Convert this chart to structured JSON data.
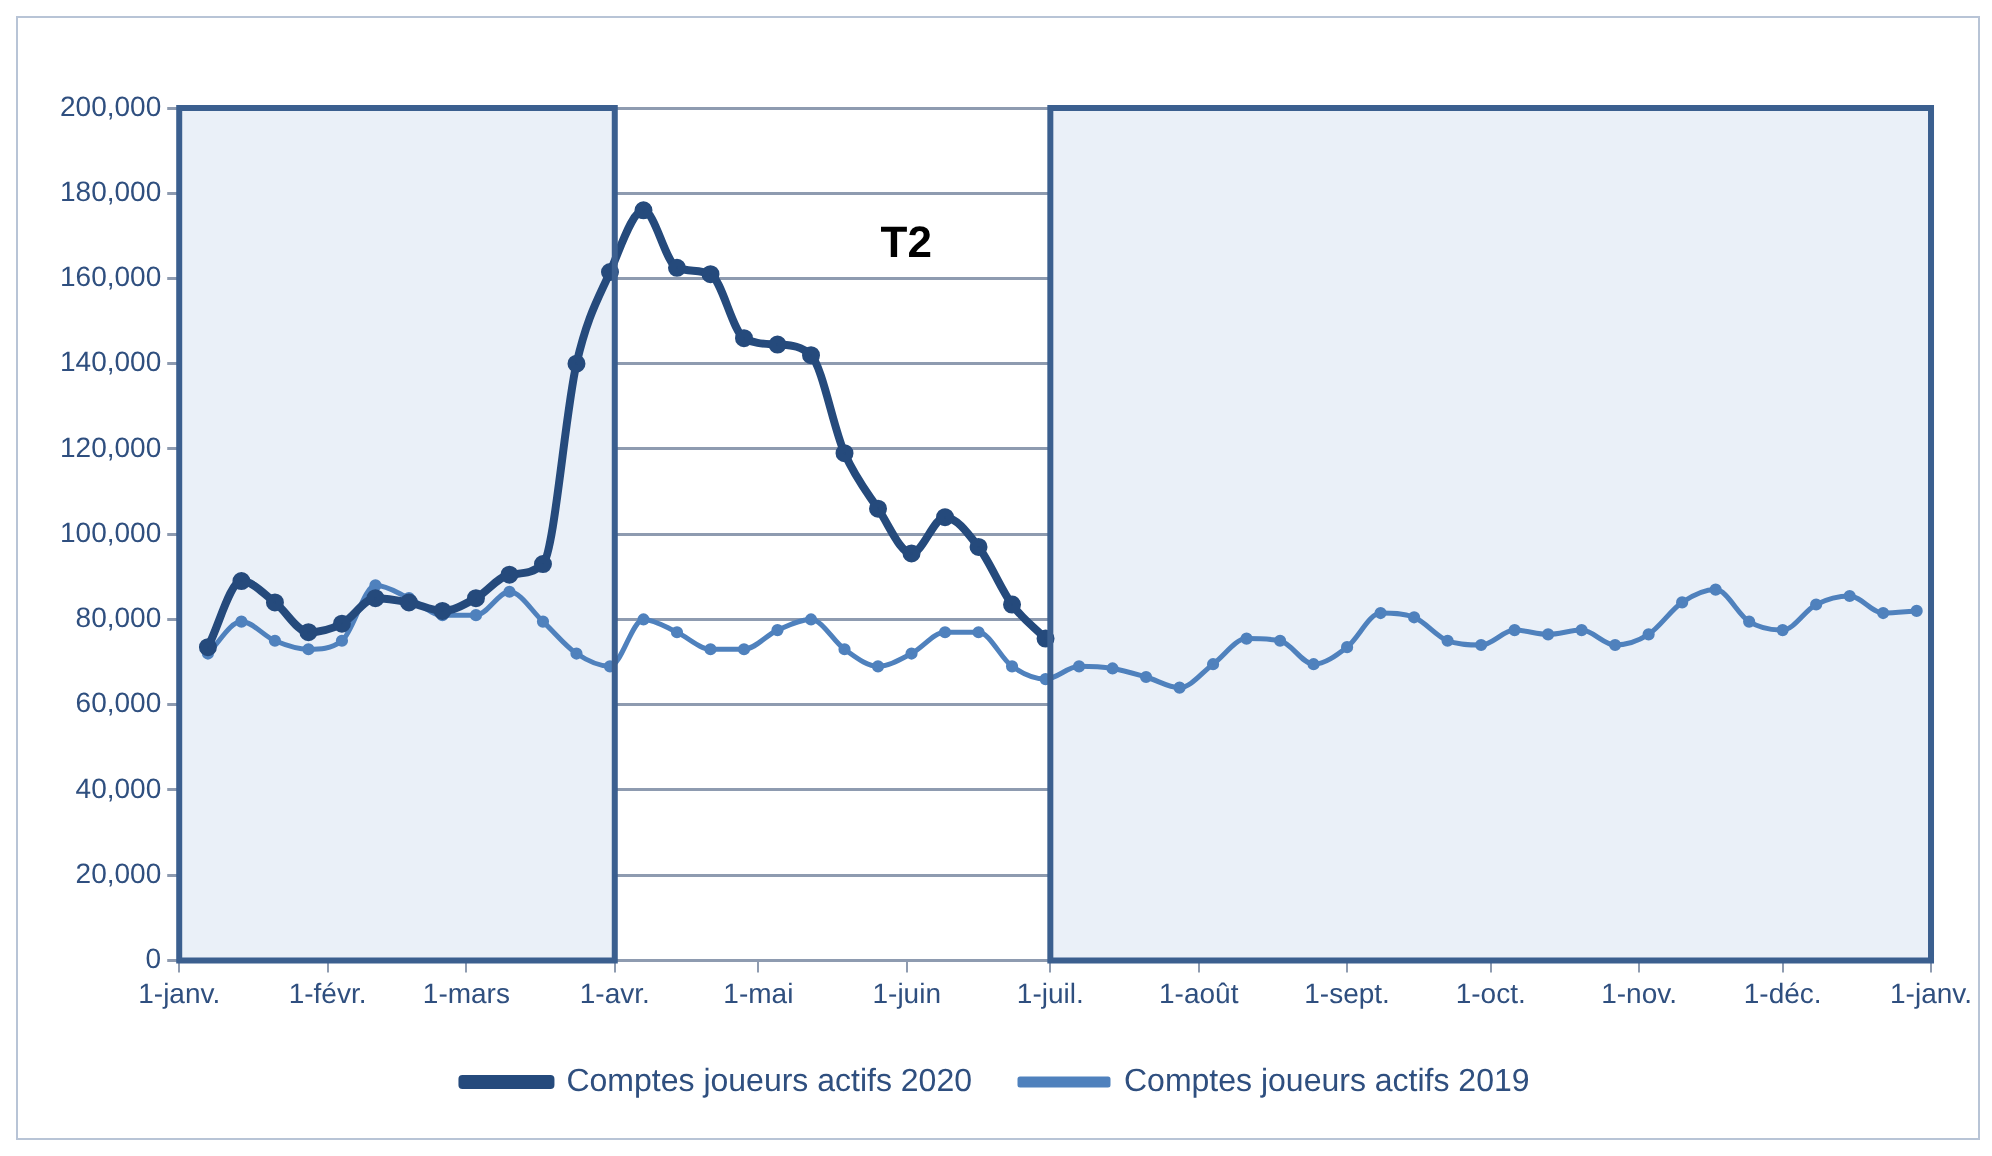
{
  "chart_data": {
    "type": "line",
    "xlim": [
      "2020-01-01",
      "2021-01-01"
    ],
    "xticks": [
      {
        "value": "2020-01-01",
        "label": "1-janv."
      },
      {
        "value": "2020-02-01",
        "label": "1-févr."
      },
      {
        "value": "2020-03-01",
        "label": "1-mars"
      },
      {
        "value": "2020-04-01",
        "label": "1-avr."
      },
      {
        "value": "2020-05-01",
        "label": "1-mai"
      },
      {
        "value": "2020-06-01",
        "label": "1-juin"
      },
      {
        "value": "2020-07-01",
        "label": "1-juil."
      },
      {
        "value": "2020-08-01",
        "label": "1-août"
      },
      {
        "value": "2020-09-01",
        "label": "1-sept."
      },
      {
        "value": "2020-10-01",
        "label": "1-oct."
      },
      {
        "value": "2020-11-01",
        "label": "1-nov."
      },
      {
        "value": "2020-12-01",
        "label": "1-déc."
      },
      {
        "value": "2021-01-01",
        "label": "1-janv."
      }
    ],
    "ylim": [
      0,
      200000
    ],
    "yticks": [
      {
        "value": 0,
        "label": "0"
      },
      {
        "value": 20000,
        "label": "20,000"
      },
      {
        "value": 40000,
        "label": "40,000"
      },
      {
        "value": 60000,
        "label": "60,000"
      },
      {
        "value": 80000,
        "label": "80,000"
      },
      {
        "value": 100000,
        "label": "100,000"
      },
      {
        "value": 120000,
        "label": "120,000"
      },
      {
        "value": 140000,
        "label": "140,000"
      },
      {
        "value": 160000,
        "label": "160,000"
      },
      {
        "value": 180000,
        "label": "180,000"
      },
      {
        "value": 200000,
        "label": "200,000"
      }
    ],
    "grid": "y",
    "legend": "bottom",
    "marker": "circle",
    "line_style": "solid",
    "series": [
      {
        "name": "Comptes joueurs actifs 2020",
        "color": "#254a7c",
        "x": [
          "2020-01-07",
          "2020-01-14",
          "2020-01-21",
          "2020-01-28",
          "2020-02-04",
          "2020-02-11",
          "2020-02-18",
          "2020-02-25",
          "2020-03-03",
          "2020-03-10",
          "2020-03-17",
          "2020-03-24",
          "2020-03-31",
          "2020-04-07",
          "2020-04-14",
          "2020-04-21",
          "2020-04-28",
          "2020-05-05",
          "2020-05-12",
          "2020-05-19",
          "2020-05-26",
          "2020-06-02",
          "2020-06-09",
          "2020-06-16",
          "2020-06-23",
          "2020-06-30"
        ],
        "values": [
          73500,
          89000,
          84000,
          77000,
          79000,
          85000,
          84000,
          82000,
          85000,
          90500,
          93000,
          140000,
          161500,
          176000,
          162500,
          161000,
          146000,
          144500,
          142000,
          119000,
          106000,
          95500,
          104000,
          97000,
          83500,
          75500
        ]
      },
      {
        "name": "Comptes joueurs actifs 2019",
        "color": "#4f81bd",
        "x": [
          "2020-01-07",
          "2020-01-14",
          "2020-01-21",
          "2020-01-28",
          "2020-02-04",
          "2020-02-11",
          "2020-02-18",
          "2020-02-25",
          "2020-03-03",
          "2020-03-10",
          "2020-03-17",
          "2020-03-24",
          "2020-03-31",
          "2020-04-07",
          "2020-04-14",
          "2020-04-21",
          "2020-04-28",
          "2020-05-05",
          "2020-05-12",
          "2020-05-19",
          "2020-05-26",
          "2020-06-02",
          "2020-06-09",
          "2020-06-16",
          "2020-06-23",
          "2020-06-30",
          "2020-07-07",
          "2020-07-14",
          "2020-07-21",
          "2020-07-28",
          "2020-08-04",
          "2020-08-11",
          "2020-08-18",
          "2020-08-25",
          "2020-09-01",
          "2020-09-08",
          "2020-09-15",
          "2020-09-22",
          "2020-09-29",
          "2020-10-06",
          "2020-10-13",
          "2020-10-20",
          "2020-10-27",
          "2020-11-03",
          "2020-11-10",
          "2020-11-17",
          "2020-11-24",
          "2020-12-01",
          "2020-12-08",
          "2020-12-15",
          "2020-12-22",
          "2020-12-29"
        ],
        "values": [
          72000,
          79500,
          75000,
          73000,
          75000,
          88000,
          85000,
          81000,
          81000,
          86500,
          79500,
          72000,
          69000,
          80000,
          77000,
          73000,
          73000,
          77500,
          80000,
          73000,
          69000,
          72000,
          77000,
          77000,
          69000,
          66000,
          69000,
          68500,
          66500,
          64000,
          69500,
          75500,
          75000,
          69500,
          73500,
          81500,
          80500,
          75000,
          74000,
          77500,
          76500,
          77500,
          74000,
          76500,
          84000,
          87000,
          79500,
          77500,
          83500,
          85500,
          81500,
          82000
        ]
      }
    ],
    "bands": [
      {
        "axis": "x",
        "from": "2020-01-01",
        "to": "2020-04-01",
        "color": "#eaf0f8"
      },
      {
        "axis": "x",
        "from": "2020-07-01",
        "to": "2021-01-01",
        "color": "#eaf0f8"
      }
    ],
    "annotations": [
      "T2"
    ]
  }
}
